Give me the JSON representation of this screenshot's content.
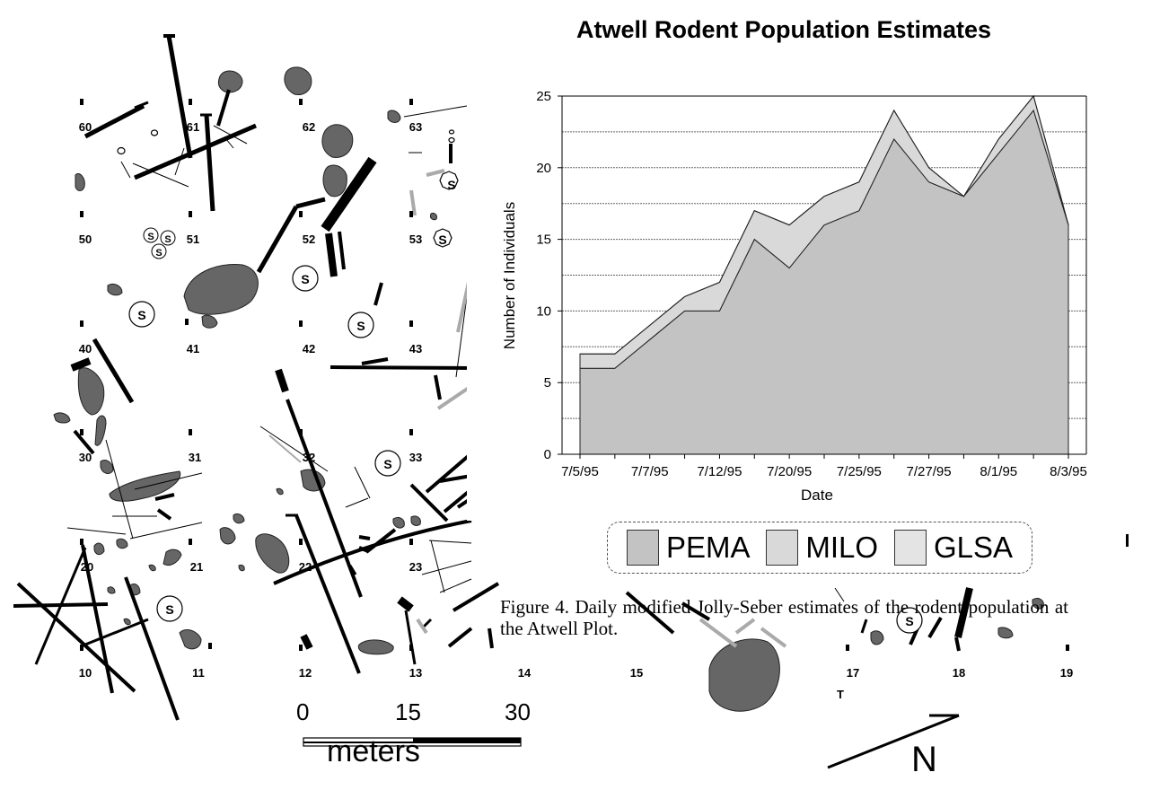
{
  "chart_data": {
    "type": "area",
    "stacked": true,
    "title": "Atwell Rodent Population Estimates",
    "xlabel": "Date",
    "ylabel": "Number of Individuals",
    "ylim": [
      0,
      25
    ],
    "yticks": [
      0,
      5,
      10,
      15,
      20,
      25
    ],
    "categories": [
      "7/5/95",
      "7/6/95",
      "7/7/95",
      "7/11/95",
      "7/12/95",
      "7/19/95",
      "7/20/95",
      "7/24/95",
      "7/25/95",
      "7/26/95",
      "7/27/95",
      "7/31/95",
      "8/1/95",
      "8/2/95",
      "8/3/95"
    ],
    "xtick_labels": [
      "7/5/95",
      "7/7/95",
      "7/12/95",
      "7/20/95",
      "7/25/95",
      "7/27/95",
      "8/1/95",
      "8/3/95"
    ],
    "series": [
      {
        "name": "PEMA",
        "values": [
          6,
          6,
          8,
          10,
          10,
          15,
          13,
          16,
          17,
          22,
          19,
          18,
          21,
          24,
          16
        ],
        "color": "#c3c3c3"
      },
      {
        "name": "MILO",
        "values": [
          1,
          1,
          1,
          1,
          2,
          2,
          3,
          2,
          2,
          2,
          1,
          0,
          1,
          1,
          0
        ],
        "color": "#d9d9d9"
      },
      {
        "name": "GLSA",
        "values": [
          0,
          0,
          0,
          0,
          0,
          0,
          0,
          0,
          0,
          0,
          0,
          0,
          0,
          0,
          0
        ],
        "color": "#e4e4e4"
      }
    ],
    "grid": true,
    "legend_position": "bottom"
  },
  "caption": "Figure 4.  Daily modified Jolly-Seber estimates of the rodent population at the Atwell Plot.",
  "map": {
    "stake_labels": [
      "60",
      "61",
      "62",
      "63",
      "50",
      "51",
      "52",
      "53",
      "40",
      "41",
      "42",
      "43",
      "30",
      "31",
      "32",
      "33",
      "20",
      "21",
      "22",
      "23",
      "10",
      "11",
      "12",
      "13",
      "14",
      "15",
      "17",
      "18",
      "19"
    ],
    "s_marker": "S",
    "scale": {
      "ticks": [
        "0",
        "15",
        "30"
      ],
      "unit": "meters"
    },
    "north_label": "N"
  }
}
